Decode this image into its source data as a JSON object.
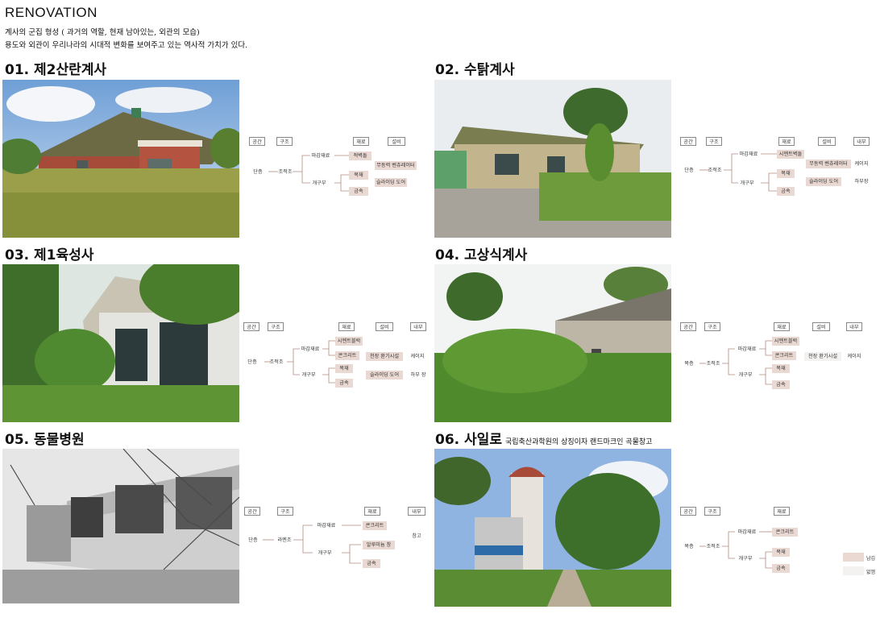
{
  "header": {
    "title": "RENOVATION",
    "line1": "계사의 군집 형성 ( 과거의 역할, 현재 남아있는, 외관의 모습)",
    "line2": "용도와 외관이 우리나라의 시대적 변화를 보여주고 있는 역사적 가치가 있다."
  },
  "colors": {
    "old_material": "#ead9d3",
    "new_material": "#f4f1f1",
    "line": "#b08a7e"
  },
  "legend": {
    "old": "남김",
    "new": "없앰"
  },
  "headers": {
    "space": "공간",
    "structure": "구조",
    "material": "재료",
    "equipment": "설비",
    "interior": "내부"
  },
  "sections": [
    {
      "title": "01. 제2산란계사",
      "space": "단층",
      "structure": "조적조",
      "finish": "마감재료",
      "frame": "개구부",
      "finish_items": [
        "적벽돌"
      ],
      "frame_items": [
        "목재",
        "금속"
      ],
      "equipment_items": [
        "무동력 벤츄레이터",
        "슬라이딩 도어"
      ],
      "interior_items": []
    },
    {
      "title": "02. 수탉계사",
      "space": "단층",
      "structure": "조적조",
      "finish": "마감재료",
      "frame": "개구부",
      "finish_items": [
        "시멘트벽돌"
      ],
      "frame_items": [
        "목재",
        "금속"
      ],
      "equipment_items": [
        "무동력 벤츄레이터",
        "슬라이딩 도어"
      ],
      "interior_items": [
        "케이지",
        "하부장"
      ]
    },
    {
      "title": "03. 제1육성사",
      "space": "단층",
      "structure": "조적조",
      "finish": "마감재료",
      "frame": "개구부",
      "finish_items": [
        "시멘트블럭",
        "콘크리트"
      ],
      "frame_items": [
        "목재",
        "금속"
      ],
      "equipment_items": [
        "천장 환기시설",
        "슬라이딩 도어"
      ],
      "interior_items": [
        "케이지",
        "하부 장"
      ]
    },
    {
      "title": "04. 고상식계사",
      "space": "복층",
      "structure": "조적조",
      "finish": "마감재료",
      "frame": "개구부",
      "finish_items": [
        "시멘트블럭",
        "콘크리트"
      ],
      "frame_items": [
        "목재",
        "금속"
      ],
      "equipment_items": [
        "천장 환기시설"
      ],
      "interior_items": [
        "케이지"
      ]
    },
    {
      "title": "05. 동물병원",
      "space": "단층",
      "structure": "라멘조",
      "finish": "마감재료",
      "frame": "개구부",
      "finish_items": [
        "콘크리트"
      ],
      "frame_items": [
        "알루미늄 창",
        "금속"
      ],
      "equipment_items": [],
      "interior_items": [
        "창고"
      ]
    },
    {
      "title": "06. 사일로",
      "note": "국립축산과학원의 상징이자 랜드마크인 곡물창고",
      "space": "복층",
      "structure": "조적조",
      "finish": "마감재료",
      "frame": "개구부",
      "finish_items": [
        "콘크리트"
      ],
      "frame_items": [
        "목재",
        "금속"
      ],
      "equipment_items": [],
      "interior_items": []
    }
  ]
}
